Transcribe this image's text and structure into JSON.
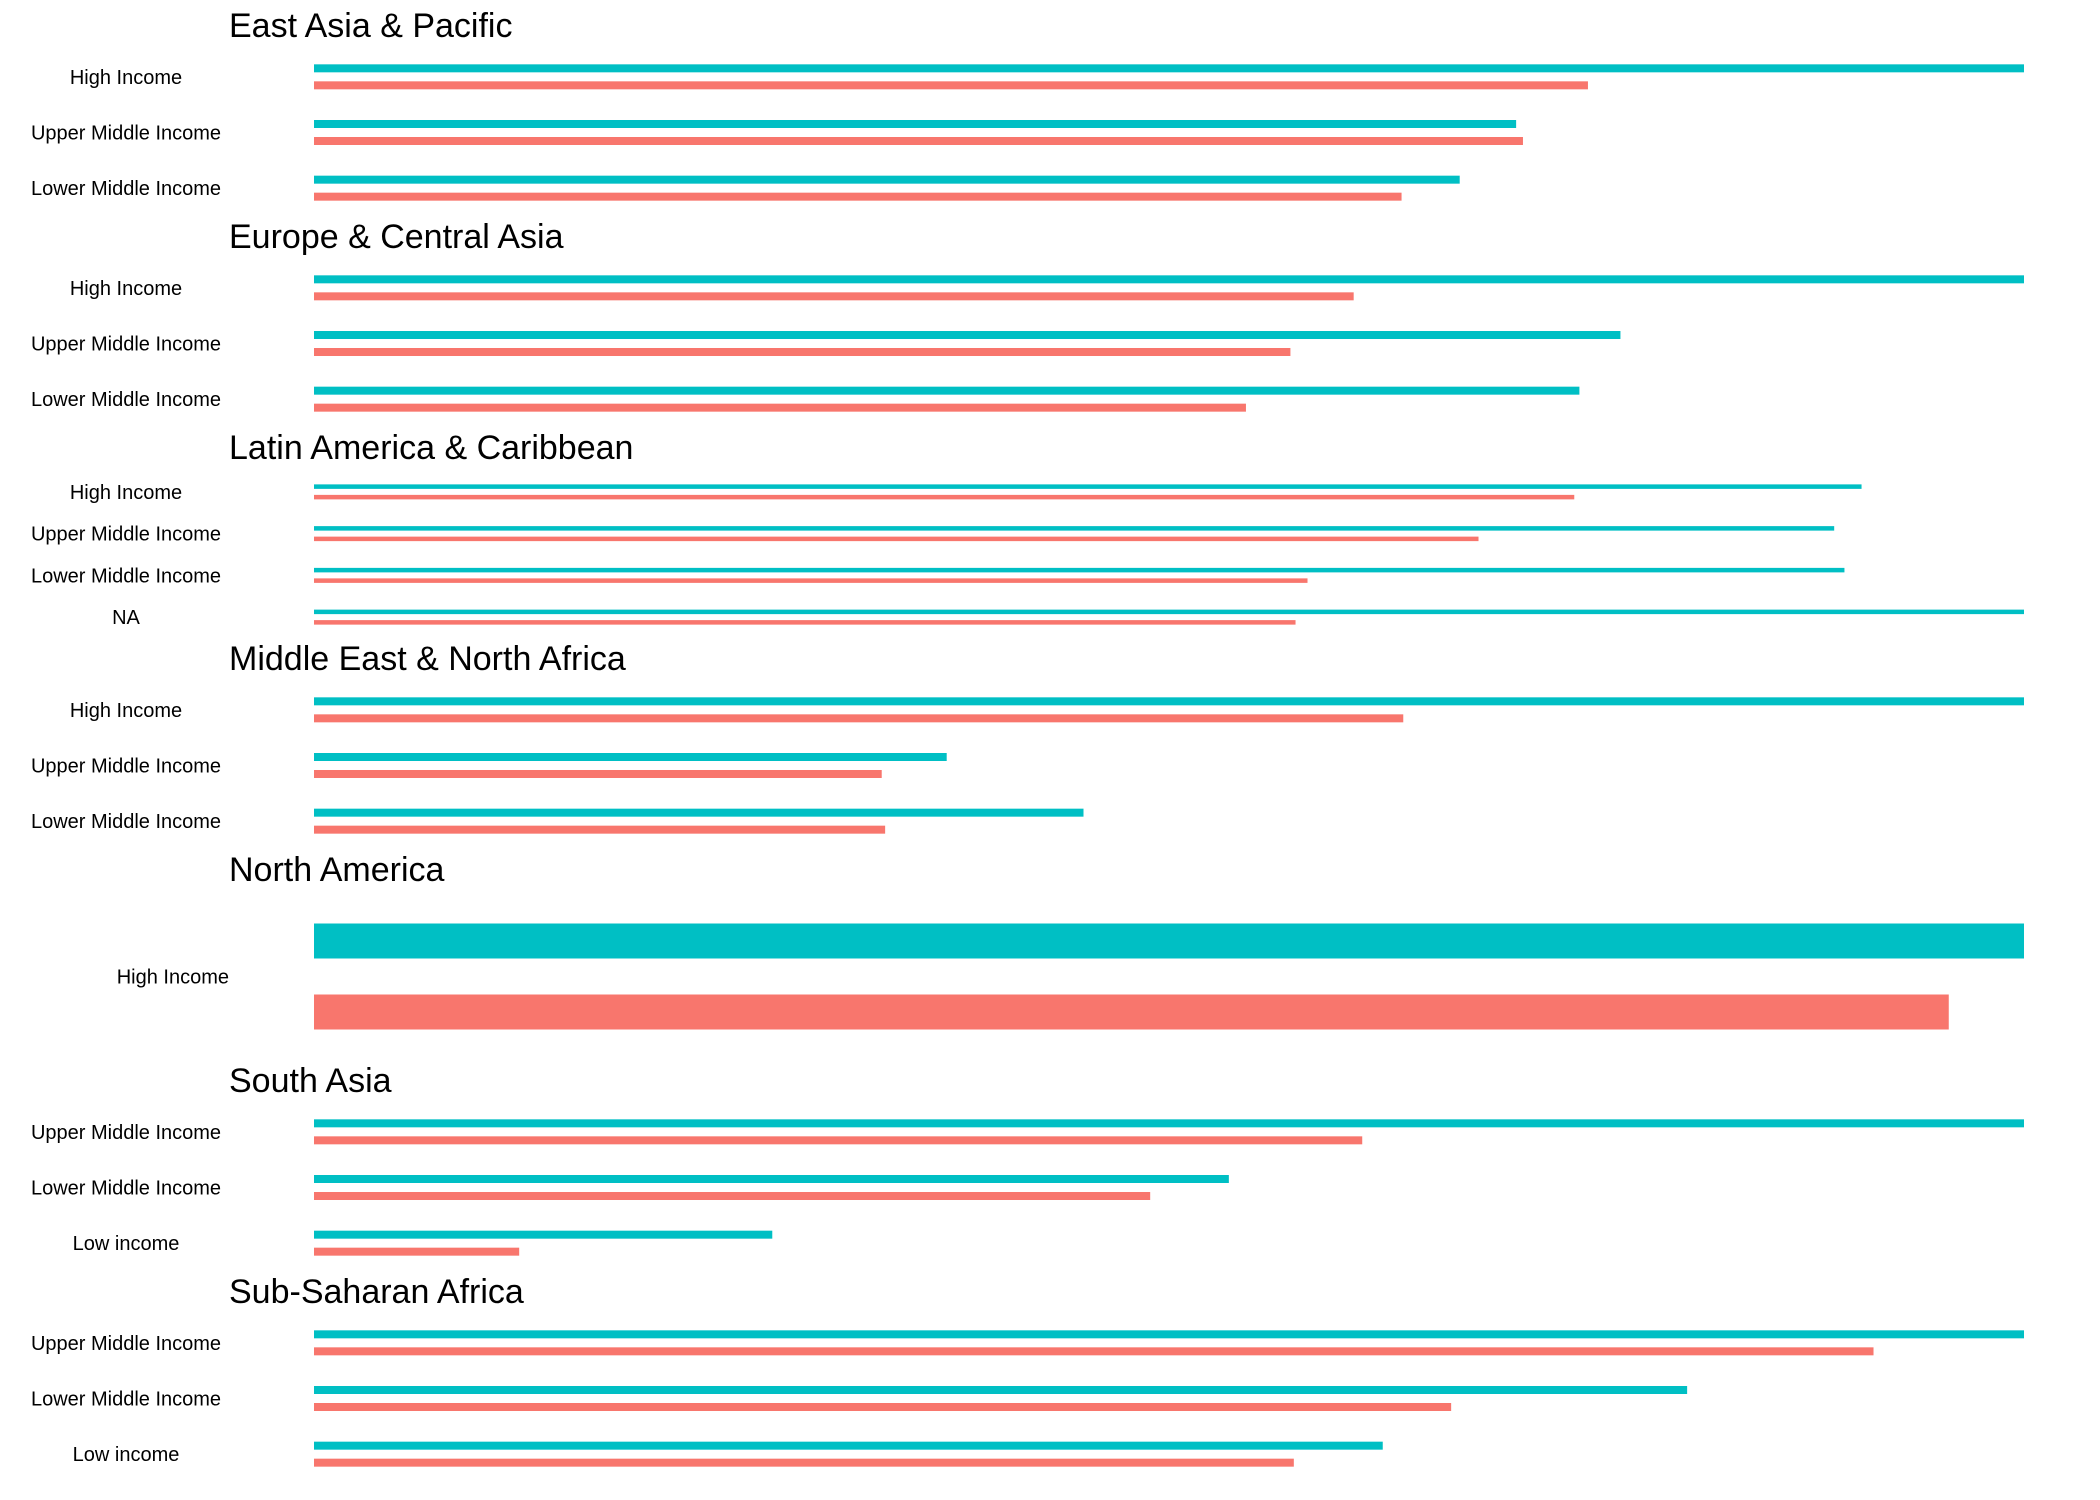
{
  "chart_data": {
    "type": "bar",
    "orientation": "horizontal",
    "legend": "none",
    "grid": false,
    "xlim": [
      0,
      1
    ],
    "series": [
      {
        "name": "",
        "color": "#00BFC4"
      },
      {
        "name": "",
        "color": "#F8766D"
      }
    ],
    "panels": [
      {
        "title": "East Asia & Pacific",
        "categories": [
          "High Income",
          "Upper Middle Income",
          "Lower Middle Income"
        ],
        "values": [
          [
            1.0,
            0.745
          ],
          [
            0.703,
            0.707
          ],
          [
            0.67,
            0.636
          ]
        ]
      },
      {
        "title": "Europe & Central Asia",
        "categories": [
          "High Income",
          "Upper Middle Income",
          "Lower Middle Income"
        ],
        "values": [
          [
            1.0,
            0.608
          ],
          [
            0.764,
            0.571
          ],
          [
            0.74,
            0.545
          ]
        ]
      },
      {
        "title": "Latin America & Caribbean",
        "categories": [
          "High Income",
          "Upper Middle Income",
          "Lower Middle Income",
          "NA"
        ],
        "values": [
          [
            0.905,
            0.737
          ],
          [
            0.889,
            0.681
          ],
          [
            0.895,
            0.581
          ],
          [
            1.0,
            0.574
          ]
        ]
      },
      {
        "title": "Middle East & North Africa",
        "categories": [
          "High Income",
          "Upper Middle Income",
          "Lower Middle Income"
        ],
        "values": [
          [
            1.0,
            0.637
          ],
          [
            0.37,
            0.332
          ],
          [
            0.45,
            0.334
          ]
        ]
      },
      {
        "title": "North America",
        "categories": [
          "High Income"
        ],
        "values": [
          [
            1.0,
            0.956
          ]
        ]
      },
      {
        "title": "South Asia",
        "categories": [
          "Upper Middle Income",
          "Lower Middle Income",
          "Low income"
        ],
        "values": [
          [
            1.0,
            0.613
          ],
          [
            0.535,
            0.489
          ],
          [
            0.268,
            0.12
          ]
        ]
      },
      {
        "title": "Sub-Saharan Africa",
        "categories": [
          "Upper Middle Income",
          "Lower Middle Income",
          "Low income"
        ],
        "values": [
          [
            1.0,
            0.912
          ],
          [
            0.803,
            0.665
          ],
          [
            0.625,
            0.573
          ]
        ]
      }
    ]
  }
}
